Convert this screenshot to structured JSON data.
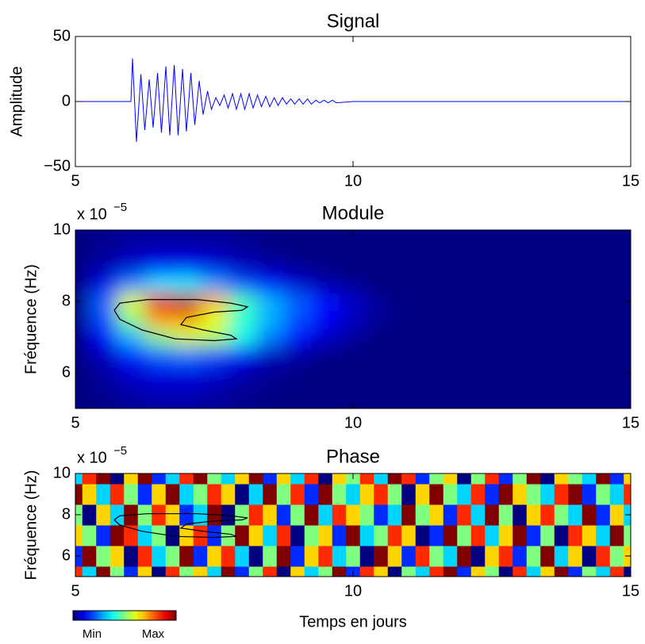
{
  "chart_data": [
    {
      "type": "line",
      "title": "Signal",
      "ylabel": "Amplitude",
      "color": "#0000ff",
      "x": [
        5,
        6.0,
        6.03,
        6.1,
        6.18,
        6.25,
        6.33,
        6.4,
        6.48,
        6.55,
        6.63,
        6.7,
        6.78,
        6.85,
        6.93,
        7.0,
        7.08,
        7.15,
        7.23,
        7.3,
        7.38,
        7.45,
        7.53,
        7.6,
        7.68,
        7.75,
        7.83,
        7.9,
        7.98,
        8.05,
        8.13,
        8.2,
        8.28,
        8.35,
        8.43,
        8.5,
        8.58,
        8.65,
        8.73,
        8.8,
        8.88,
        8.95,
        9.03,
        9.1,
        9.18,
        9.25,
        9.33,
        9.4,
        9.48,
        9.55,
        9.63,
        9.7,
        10,
        15
      ],
      "values": [
        0,
        0,
        33,
        -31,
        21,
        -22,
        17,
        -20,
        22,
        -24,
        27,
        -26,
        28,
        -26,
        25,
        -23,
        22,
        -18,
        16,
        -10,
        8,
        -6,
        3,
        -3,
        5,
        -5,
        6,
        -6,
        6,
        -6,
        6,
        -5,
        5,
        -4,
        4,
        -4,
        3,
        -3,
        3,
        -2,
        2,
        -2,
        2,
        -2,
        2,
        -2,
        1,
        -1,
        1,
        -1,
        1,
        -1,
        0,
        0
      ],
      "xlim": [
        5,
        15
      ],
      "ylim": [
        -50,
        50
      ],
      "xticks": [
        5,
        10,
        15
      ],
      "yticks": [
        {
          "value": -50,
          "label": "−50"
        },
        0,
        50
      ]
    },
    {
      "type": "heatmap",
      "title": "Module",
      "ylabel": "Fréquence (Hz)",
      "y_multiplier": "x 10",
      "y_multiplier_exponent": "−5",
      "colormap": "jet",
      "clim": [
        0,
        1
      ],
      "smooth": true,
      "x": [
        5,
        5.5,
        6,
        6.5,
        7,
        7.5,
        8,
        8.5,
        9,
        9.5,
        10,
        10.5,
        11,
        11.5,
        12,
        12.5,
        13,
        13.5,
        14,
        14.5,
        15
      ],
      "y": [
        5,
        5.5,
        6,
        6.5,
        7,
        7.5,
        8,
        8.5,
        9,
        9.5,
        10
      ],
      "z": [
        [
          0,
          0,
          0.02,
          0.03,
          0.03,
          0.02,
          0.01,
          0,
          0,
          0,
          0,
          0,
          0,
          0,
          0,
          0,
          0,
          0,
          0,
          0,
          0
        ],
        [
          0,
          0.02,
          0.04,
          0.06,
          0.06,
          0.04,
          0.02,
          0.01,
          0,
          0,
          0,
          0,
          0,
          0,
          0,
          0,
          0,
          0,
          0,
          0,
          0
        ],
        [
          0,
          0.03,
          0.08,
          0.1,
          0.1,
          0.08,
          0.05,
          0.02,
          0.01,
          0,
          0,
          0,
          0,
          0,
          0,
          0,
          0,
          0,
          0,
          0,
          0
        ],
        [
          0,
          0.06,
          0.15,
          0.22,
          0.24,
          0.2,
          0.12,
          0.06,
          0.03,
          0.01,
          0,
          0,
          0,
          0,
          0,
          0,
          0,
          0,
          0,
          0,
          0
        ],
        [
          0,
          0.12,
          0.3,
          0.5,
          0.58,
          0.55,
          0.4,
          0.25,
          0.14,
          0.07,
          0.03,
          0,
          0,
          0,
          0,
          0,
          0,
          0,
          0,
          0,
          0
        ],
        [
          0,
          0.2,
          0.5,
          0.72,
          0.72,
          0.6,
          0.42,
          0.3,
          0.2,
          0.12,
          0.06,
          0.02,
          0,
          0,
          0,
          0,
          0,
          0,
          0,
          0,
          0
        ],
        [
          0,
          0.22,
          0.6,
          0.9,
          0.95,
          0.7,
          0.45,
          0.3,
          0.22,
          0.14,
          0.07,
          0.02,
          0,
          0,
          0,
          0,
          0,
          0,
          0,
          0,
          0
        ],
        [
          0,
          0.1,
          0.25,
          0.35,
          0.36,
          0.28,
          0.2,
          0.14,
          0.08,
          0.04,
          0.02,
          0,
          0,
          0,
          0,
          0,
          0,
          0,
          0,
          0,
          0
        ],
        [
          0,
          0.04,
          0.08,
          0.12,
          0.12,
          0.1,
          0.06,
          0.04,
          0.02,
          0.01,
          0,
          0,
          0,
          0,
          0,
          0,
          0,
          0,
          0,
          0,
          0
        ],
        [
          0,
          0.02,
          0.04,
          0.05,
          0.05,
          0.04,
          0.03,
          0.01,
          0,
          0,
          0,
          0,
          0,
          0,
          0,
          0,
          0,
          0,
          0,
          0,
          0
        ],
        [
          0,
          0.01,
          0.02,
          0.02,
          0.02,
          0.02,
          0.01,
          0,
          0,
          0,
          0,
          0,
          0,
          0,
          0,
          0,
          0,
          0,
          0,
          0,
          0
        ]
      ],
      "contour": {
        "x": [
          5.7,
          5.8,
          6.3,
          7.2,
          7.8,
          8.1,
          8.0,
          7.5,
          7.0,
          6.9,
          7.3,
          7.8,
          7.9,
          7.5,
          6.8,
          6.2,
          5.8,
          5.7
        ],
        "y": [
          7.75,
          7.95,
          8.05,
          8.05,
          7.95,
          7.85,
          7.75,
          7.7,
          7.55,
          7.35,
          7.2,
          7.05,
          6.95,
          6.9,
          6.95,
          7.2,
          7.5,
          7.75
        ]
      },
      "contour_color": "#000000",
      "xlim": [
        5,
        15
      ],
      "ylim": [
        5,
        10
      ],
      "xticks": [
        5,
        10,
        15
      ],
      "yticks": [
        6,
        8,
        10
      ]
    },
    {
      "type": "heatmap",
      "title": "Phase",
      "ylabel": "Fréquence (Hz)",
      "xlabel": "Temps en jours",
      "y_multiplier": "x 10",
      "y_multiplier_exponent": "−5",
      "colormap": "jet",
      "clim": [
        -3,
        3
      ],
      "smooth": false,
      "x": [
        5,
        5.25,
        5.5,
        5.75,
        6,
        6.25,
        6.5,
        6.75,
        7,
        7.25,
        7.5,
        7.75,
        8,
        8.25,
        8.5,
        8.75,
        9,
        9.25,
        9.5,
        9.75,
        10,
        10.25,
        10.5,
        10.75,
        11,
        11.25,
        11.5,
        11.75,
        12,
        12.25,
        12.5,
        12.75,
        13,
        13.25,
        13.5,
        13.75,
        14,
        14.25,
        14.5,
        14.75,
        15
      ],
      "y": [
        5,
        6,
        7,
        8,
        9,
        10
      ],
      "z": [
        [
          2,
          -1,
          3,
          0,
          -2,
          1,
          -3,
          2,
          0,
          1,
          -1,
          3,
          -2,
          0,
          2,
          -3,
          1,
          -1,
          0,
          3,
          -2,
          2,
          1,
          -3,
          0,
          -1,
          2,
          3,
          -2,
          1,
          0,
          -3,
          2,
          -1,
          1,
          3,
          -2,
          0,
          -1,
          2,
          -3
        ],
        [
          -2,
          3,
          0,
          1,
          -3,
          2,
          -1,
          0,
          3,
          -2,
          1,
          2,
          -1,
          -3,
          0,
          3,
          -2,
          1,
          2,
          -1,
          0,
          -3,
          3,
          1,
          -2,
          2,
          0,
          -1,
          3,
          -3,
          1,
          2,
          -2,
          0,
          3,
          -1,
          1,
          -3,
          2,
          0,
          1
        ],
        [
          1,
          0,
          -2,
          3,
          2,
          -1,
          0,
          -3,
          1,
          2,
          -2,
          0,
          3,
          1,
          -1,
          2,
          -3,
          0,
          1,
          -2,
          3,
          -1,
          0,
          2,
          1,
          -3,
          -2,
          3,
          0,
          2,
          -1,
          1,
          3,
          -2,
          0,
          -3,
          2,
          1,
          -1,
          3,
          0
        ],
        [
          0,
          -3,
          1,
          -1,
          3,
          0,
          2,
          1,
          -2,
          -1,
          3,
          -3,
          0,
          2,
          1,
          -2,
          0,
          3,
          -1,
          2,
          1,
          0,
          -2,
          -1,
          3,
          0,
          1,
          -2,
          2,
          -1,
          3,
          0,
          -3,
          1,
          2,
          0,
          -1,
          3,
          -2,
          1,
          -1
        ],
        [
          3,
          1,
          -1,
          2,
          0,
          -2,
          1,
          3,
          -1,
          0,
          2,
          1,
          -3,
          -1,
          3,
          0,
          2,
          -2,
          3,
          0,
          -1,
          1,
          2,
          0,
          -3,
          1,
          3,
          0,
          -1,
          2,
          -2,
          3,
          1,
          0,
          -1,
          2,
          3,
          -2,
          0,
          -1,
          2
        ],
        [
          -1,
          2,
          3,
          -3,
          1,
          3,
          -2,
          -1,
          2,
          3,
          0,
          -1,
          1,
          3,
          -2,
          1,
          -1,
          2,
          -3,
          1,
          0,
          2,
          -1,
          3,
          2,
          -2,
          0,
          1,
          -3,
          0,
          2,
          -2,
          0,
          3,
          -3,
          1,
          0,
          -1,
          3,
          -2,
          1
        ]
      ],
      "contour": {
        "x": [
          5.7,
          5.8,
          6.3,
          7.2,
          7.8,
          8.1,
          8.0,
          7.5,
          7.0,
          6.9,
          7.3,
          7.8,
          7.9,
          7.5,
          6.8,
          6.2,
          5.8,
          5.7
        ],
        "y": [
          7.75,
          7.95,
          8.05,
          8.05,
          7.95,
          7.85,
          7.75,
          7.7,
          7.55,
          7.35,
          7.2,
          7.05,
          6.95,
          6.9,
          6.95,
          7.2,
          7.5,
          7.75
        ]
      },
      "contour_color": "#000000",
      "colorbar": {
        "min_label": "Min",
        "max_label": "Max"
      },
      "xlim": [
        5,
        15
      ],
      "ylim": [
        5,
        10
      ],
      "xticks": [
        5,
        10,
        15
      ],
      "yticks": [
        6,
        8,
        10
      ]
    }
  ]
}
